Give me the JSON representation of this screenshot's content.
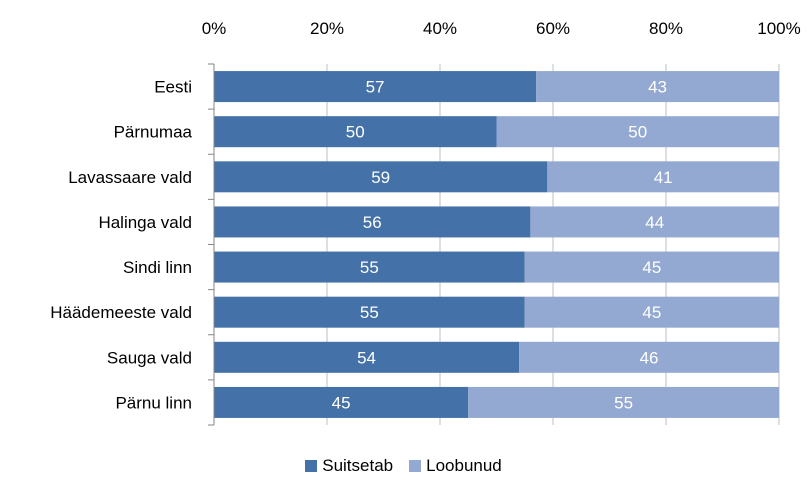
{
  "chart_data": {
    "type": "bar",
    "orientation": "horizontal",
    "stacked": "percent",
    "categories": [
      "Eesti",
      "Pärnumaa",
      "Lavassaare vald",
      "Halinga vald",
      "Sindi linn",
      "Häädemeeste vald",
      "Sauga vald",
      "Pärnu linn"
    ],
    "series": [
      {
        "name": "Suitsetab",
        "color": "#4472a8",
        "values": [
          57,
          50,
          59,
          56,
          55,
          55,
          54,
          45
        ]
      },
      {
        "name": "Loobunud",
        "color": "#93a9d1",
        "values": [
          43,
          50,
          41,
          44,
          45,
          45,
          46,
          55
        ]
      }
    ],
    "x_ticks": [
      "0%",
      "20%",
      "40%",
      "60%",
      "80%",
      "100%"
    ],
    "xlim": [
      0,
      100
    ],
    "x_axis_position": "top",
    "grid": true,
    "legend_position": "bottom",
    "title": "",
    "xlabel": "",
    "ylabel": ""
  }
}
